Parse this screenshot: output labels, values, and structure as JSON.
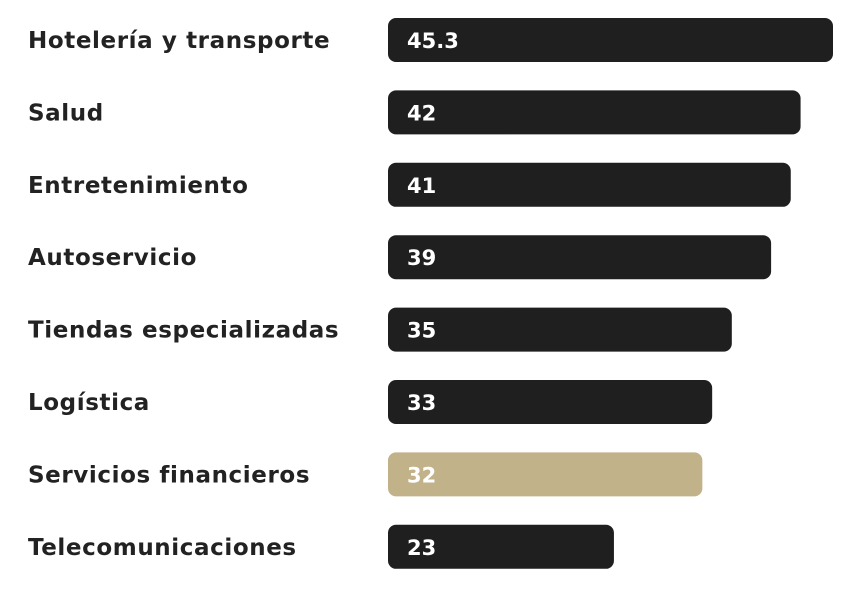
{
  "chart_data": {
    "type": "bar",
    "orientation": "horizontal",
    "categories": [
      "Hotelería y transporte",
      "Salud",
      "Entretenimiento",
      "Autoservicio",
      "Tiendas especializadas",
      "Logística",
      "Servicios financieros",
      "Telecomunicaciones"
    ],
    "values": [
      45.3,
      42,
      41,
      39,
      35,
      33,
      32,
      23
    ],
    "value_labels": [
      "45.3",
      "42",
      "41",
      "39",
      "35",
      "33",
      "32",
      "23"
    ],
    "highlight_index": 6,
    "xlim": [
      0,
      45.3
    ],
    "grid": false,
    "legend": "none",
    "colors": {
      "bar": "#1f1f1f",
      "highlight": "#c2b28a",
      "label_text": "#222222",
      "value_text": "#ffffff"
    }
  }
}
